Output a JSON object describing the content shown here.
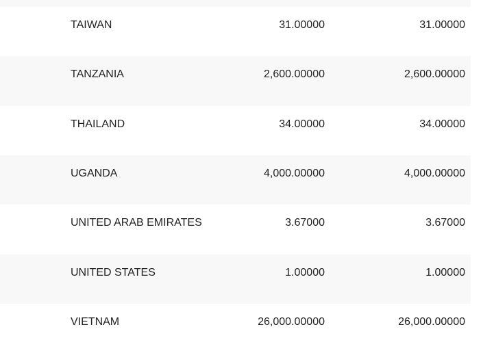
{
  "table": {
    "rows": [
      [
        "TAIWAN",
        "31.00000",
        "31.00000"
      ],
      [
        "TANZANIA",
        "2,600.00000",
        "2,600.00000"
      ],
      [
        "THAILAND",
        "34.00000",
        "34.00000"
      ],
      [
        "UGANDA",
        "4,000.00000",
        "4,000.00000"
      ],
      [
        "UNITED ARAB EMIRATES",
        "3.67000",
        "3.67000"
      ],
      [
        "UNITED STATES",
        "1.00000",
        "1.00000"
      ],
      [
        "VIETNAM",
        "26,000.00000",
        "26,000.00000"
      ]
    ]
  }
}
